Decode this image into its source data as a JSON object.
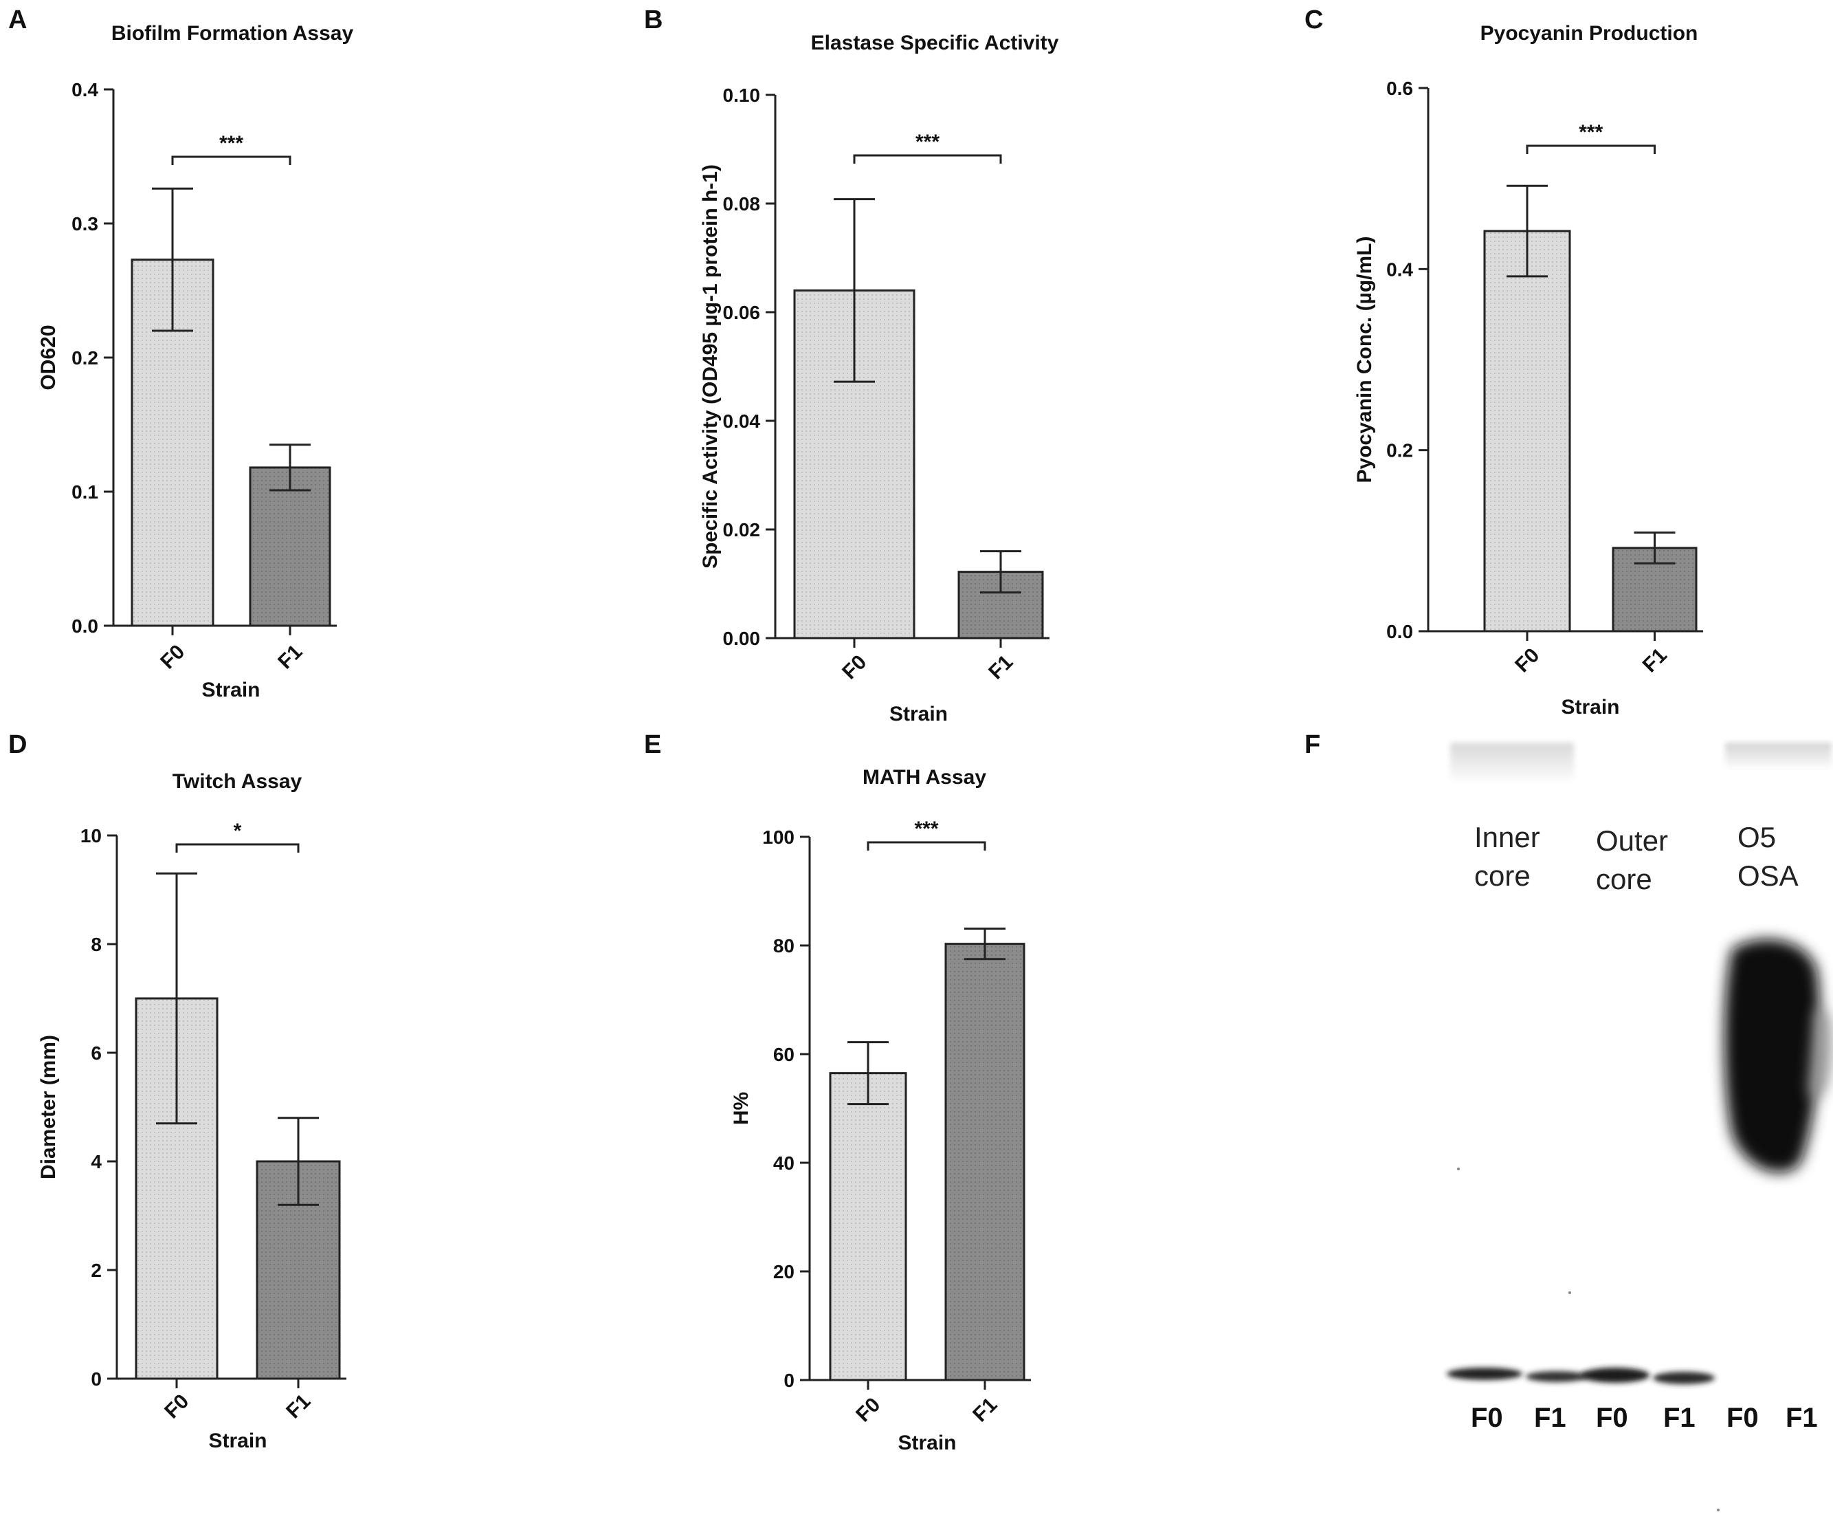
{
  "panels": {
    "A": "A",
    "B": "B",
    "C": "C",
    "D": "D",
    "E": "E",
    "F": "F"
  },
  "colors": {
    "f0_fill": "#dcdcdc",
    "f1_fill": "#8c8c8c",
    "stroke": "#222222"
  },
  "chart_data": [
    {
      "id": "A",
      "type": "bar",
      "title": "Biofilm Formation Assay",
      "xlabel": "Strain",
      "ylabel": "OD620",
      "categories": [
        "F0",
        "F1"
      ],
      "values": [
        0.273,
        0.118
      ],
      "errors": [
        0.053,
        0.017
      ],
      "ylim": [
        0,
        0.4
      ],
      "yticks": [
        "0.0",
        "0.1",
        "0.2",
        "0.3",
        "0.4"
      ],
      "significance": "***"
    },
    {
      "id": "B",
      "type": "bar",
      "title": "Elastase Specific Activity",
      "xlabel": "Strain",
      "ylabel": "Specific Activity (OD495 µg-1 protein h-1)",
      "categories": [
        "F0",
        "F1"
      ],
      "values": [
        0.064,
        0.0122
      ],
      "errors": [
        0.0168,
        0.0038
      ],
      "ylim": [
        0,
        0.1
      ],
      "yticks": [
        "0.00",
        "0.02",
        "0.04",
        "0.06",
        "0.08",
        "0.10"
      ],
      "significance": "***"
    },
    {
      "id": "C",
      "type": "bar",
      "title": "Pyocyanin Production",
      "xlabel": "Strain",
      "ylabel": "Pyocyanin Conc. (µg/mL)",
      "categories": [
        "F0",
        "F1"
      ],
      "values": [
        0.442,
        0.092
      ],
      "errors": [
        0.05,
        0.017
      ],
      "ylim": [
        0,
        0.6
      ],
      "yticks": [
        "0.0",
        "0.2",
        "0.4",
        "0.6"
      ],
      "significance": "***"
    },
    {
      "id": "D",
      "type": "bar",
      "title": "Twitch Assay",
      "xlabel": "Strain",
      "ylabel": "Diameter (mm)",
      "categories": [
        "F0",
        "F1"
      ],
      "values": [
        7.0,
        4.0
      ],
      "errors": [
        2.3,
        0.8
      ],
      "ylim": [
        0,
        10
      ],
      "yticks": [
        "0",
        "2",
        "4",
        "6",
        "8",
        "10"
      ],
      "significance": "*"
    },
    {
      "id": "E",
      "type": "bar",
      "title": "MATH Assay",
      "xlabel": "Strain",
      "ylabel": "H%",
      "categories": [
        "F0",
        "F1"
      ],
      "values": [
        56.5,
        80.3
      ],
      "errors": [
        5.7,
        2.8
      ],
      "ylim": [
        0,
        100
      ],
      "yticks": [
        "0",
        "20",
        "40",
        "60",
        "80",
        "100"
      ],
      "significance": "***"
    }
  ],
  "blot": {
    "groups": [
      {
        "line1": "Inner",
        "line2": "core"
      },
      {
        "line1": "Outer",
        "line2": "core"
      },
      {
        "line1": "O5",
        "line2": "OSA"
      }
    ],
    "lanes": [
      "F0",
      "F1",
      "F0",
      "F1",
      "F0",
      "F1"
    ]
  }
}
